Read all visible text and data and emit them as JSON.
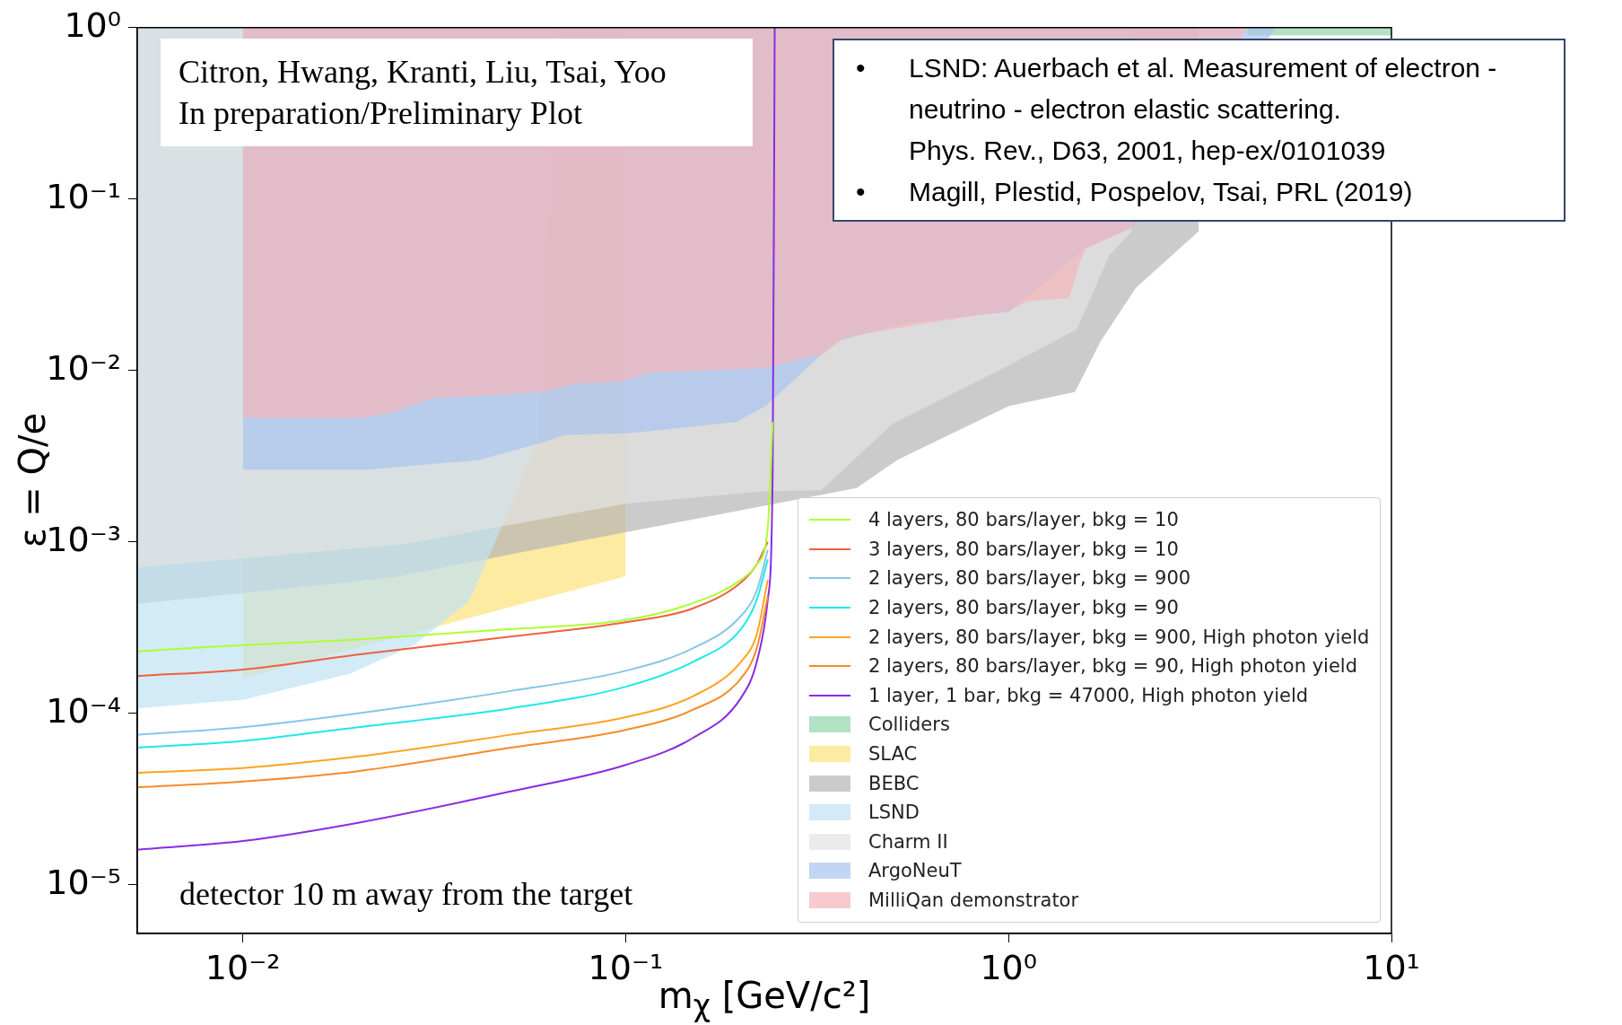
{
  "chart_data": {
    "type": "line",
    "xlabel": "m$_{χ}$ [GeV/c²]",
    "ylabel": "ε = Q/e",
    "log": "xy",
    "grid": false,
    "legend": "bottom right",
    "xlim": [
      0.0053,
      10
    ],
    "ylim": [
      5.2e-06,
      1
    ],
    "xticks": [
      {
        "value": 0.01,
        "label": "10⁻²"
      },
      {
        "value": 0.1,
        "label": "10⁻¹"
      },
      {
        "value": 1,
        "label": "10⁰"
      },
      {
        "value": 10,
        "label": "10¹"
      }
    ],
    "yticks": [
      {
        "value": 1e-05,
        "label": "10⁻⁵"
      },
      {
        "value": 0.0001,
        "label": "10⁻⁴"
      },
      {
        "value": 0.001,
        "label": "10⁻³"
      },
      {
        "value": 0.01,
        "label": "10⁻²"
      },
      {
        "value": 0.1,
        "label": "10⁻¹"
      },
      {
        "value": 1,
        "label": "10⁰"
      }
    ],
    "annotations": [
      "Citron, Hwang, Kranti, Liu, Tsai, Yoo\nIn preparation/Preliminary Plot",
      "•\tLSND: Auerbach et al. Measurement of electron -\nneutrino - electron elastic scattering.\nPhys. Rev., D63, 2001, hep-ex/0101039",
      "•\tMagill, Plestid, Pospelov, Tsai, PRL (2019)",
      "detector 10 m away from the target"
    ],
    "series": [
      {
        "name": "4 layers, 80 bars/layer, bkg = 10",
        "color": "#adff2f",
        "x": [
          0.0053,
          0.01,
          0.02,
          0.05,
          0.1,
          0.15,
          0.2,
          0.22,
          0.235,
          0.242
        ],
        "values": [
          0.00023,
          0.00025,
          0.00027,
          0.00031,
          0.00035,
          0.00044,
          0.0006,
          0.00074,
          0.0012,
          0.005
        ]
      },
      {
        "name": "3 layers, 80 bars/layer, bkg = 10",
        "color": "#f0603f",
        "x": [
          0.0053,
          0.01,
          0.02,
          0.05,
          0.1,
          0.15,
          0.2,
          0.22,
          0.235
        ],
        "values": [
          0.000165,
          0.00018,
          0.00022,
          0.00028,
          0.00034,
          0.00041,
          0.00058,
          0.00074,
          0.001
        ]
      },
      {
        "name": "2 layers, 80 bars/layer, bkg = 900",
        "color": "#87c6e8",
        "x": [
          0.0053,
          0.01,
          0.02,
          0.05,
          0.1,
          0.15,
          0.2,
          0.22,
          0.235
        ],
        "values": [
          7.5e-05,
          8.3e-05,
          0.0001,
          0.000135,
          0.000177,
          0.00024,
          0.00037,
          0.00052,
          0.0009
        ]
      },
      {
        "name": "2 layers, 80 bars/layer, bkg = 90",
        "color": "#1ee8e8",
        "x": [
          0.0053,
          0.01,
          0.02,
          0.05,
          0.1,
          0.15,
          0.2,
          0.22,
          0.235
        ],
        "values": [
          6.3e-05,
          6.9e-05,
          8.3e-05,
          0.000107,
          0.000143,
          0.0002,
          0.00031,
          0.00046,
          0.00079
        ]
      },
      {
        "name": "2 layers, 80 bars/layer, bkg = 900, High photon yield",
        "color": "#ffa321",
        "x": [
          0.0053,
          0.01,
          0.02,
          0.05,
          0.1,
          0.15,
          0.2,
          0.22,
          0.235
        ],
        "values": [
          4.5e-05,
          4.8e-05,
          5.6e-05,
          7.5e-05,
          9.5e-05,
          0.000126,
          0.0002,
          0.00029,
          0.0006
        ]
      },
      {
        "name": "2 layers, 80 bars/layer, bkg = 90, High photon yield",
        "color": "#f58b2a",
        "x": [
          0.0053,
          0.01,
          0.02,
          0.05,
          0.1,
          0.15,
          0.2,
          0.22,
          0.235
        ],
        "values": [
          3.7e-05,
          4e-05,
          4.6e-05,
          6.3e-05,
          8e-05,
          0.000105,
          0.00016,
          0.00024,
          0.00048
        ]
      },
      {
        "name": "1 layer, 1 bar, bkg = 47000, High photon yield",
        "color": "#8a2be2",
        "x": [
          0.0053,
          0.01,
          0.02,
          0.05,
          0.1,
          0.15,
          0.2,
          0.22,
          0.235,
          0.242,
          0.245
        ],
        "values": [
          1.6e-05,
          1.8e-05,
          2.3e-05,
          3.5e-05,
          5e-05,
          7.2e-05,
          0.000123,
          0.0002,
          0.00046,
          0.0025,
          1
        ]
      },
      {
        "name": "Colliders",
        "type": "area",
        "color": "#92d4ad",
        "x": [
          4.2,
          4.2,
          10,
          10
        ],
        "values": [
          1,
          0.9,
          0.9,
          1
        ]
      },
      {
        "name": "SLAC",
        "type": "area",
        "color": "#fde27a",
        "x": [
          0.01,
          0.01,
          0.1,
          0.1
        ],
        "values": [
          1,
          0.00016,
          0.00063,
          1
        ]
      },
      {
        "name": "BEBC",
        "type": "area",
        "color": "#b5b5b5",
        "x": [
          0.0053,
          0.0053,
          0.0246,
          0.0506,
          0.401,
          0.511,
          1.0,
          1.49,
          1.74,
          2.15,
          3.14,
          3.14
        ],
        "values": [
          1,
          0.000435,
          0.00062,
          0.00085,
          0.00206,
          0.003,
          0.0062,
          0.0075,
          0.0148,
          0.0303,
          0.065,
          1
        ]
      },
      {
        "name": "LSND",
        "type": "area",
        "color": "#c0e2f2",
        "x": [
          0.0053,
          0.0053,
          0.01,
          0.019,
          0.028,
          0.039,
          0.0506,
          0.059,
          0.065
        ],
        "values": [
          1,
          0.000107,
          0.00012,
          0.00017,
          0.00025,
          0.00045,
          0.0017,
          0.004,
          1
        ]
      },
      {
        "name": "Charm II",
        "type": "area",
        "color": "#e3e3e3",
        "x": [
          0.0053,
          0.0053,
          0.0265,
          0.1,
          0.228,
          0.324,
          0.499,
          1.0,
          1.51,
          1.83,
          2.1,
          2.1
        ],
        "values": [
          1,
          0.00071,
          0.00097,
          0.00167,
          0.00197,
          0.002,
          0.0049,
          0.0107,
          0.0174,
          0.0467,
          0.065,
          1
        ]
      },
      {
        "name": "ArgoNeuT",
        "type": "area",
        "color": "#a9c3ef",
        "x": [
          0.01,
          0.01,
          0.0211,
          0.0412,
          0.0532,
          0.0606,
          0.069,
          0.1016,
          0.194,
          0.232,
          0.354,
          0.537,
          1.0,
          1.59,
          2.1,
          5.0
        ],
        "values": [
          1,
          0.00264,
          0.00264,
          0.003,
          0.0035,
          0.0038,
          0.0042,
          0.0043,
          0.005,
          0.0062,
          0.0148,
          0.0189,
          0.022,
          0.052,
          0.068,
          1
        ]
      },
      {
        "name": "MilliQan demonstrator",
        "type": "area",
        "color": "#f4b5b9",
        "x": [
          0.01,
          0.01,
          0.0206,
          0.0246,
          0.0316,
          0.0467,
          0.0606,
          0.0744,
          0.0966,
          0.116,
          0.228,
          0.329,
          0.372,
          0.608,
          1.0,
          1.12,
          1.44,
          1.53,
          1.59,
          2.1,
          4.2
        ],
        "values": [
          1,
          0.0053,
          0.0053,
          0.0057,
          0.0069,
          0.0072,
          0.0075,
          0.0084,
          0.0086,
          0.0097,
          0.0103,
          0.0125,
          0.0156,
          0.0189,
          0.0223,
          0.0254,
          0.0264,
          0.0417,
          0.0514,
          0.068,
          1
        ]
      }
    ]
  }
}
